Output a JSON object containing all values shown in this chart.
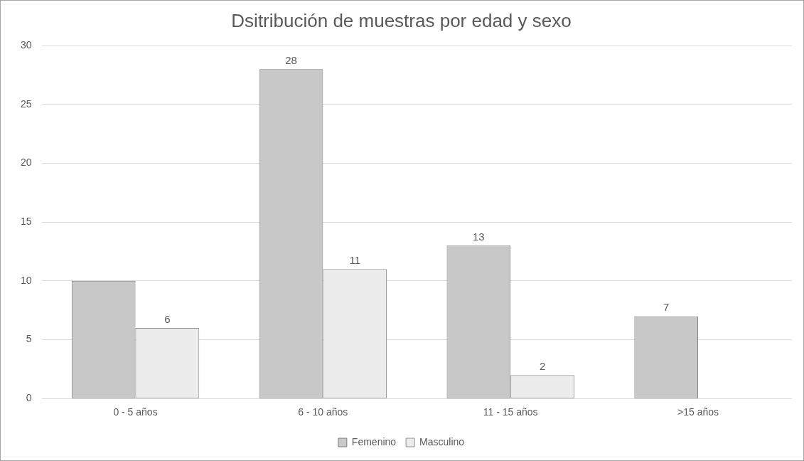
{
  "chart_data": {
    "type": "bar",
    "title": "Dsitribución de muestras por edad y sexo",
    "categories": [
      "0 - 5 años",
      "6 - 10 años",
      "11 - 15 años",
      ">15 años"
    ],
    "series": [
      {
        "name": "Femenino",
        "color": "#c8c8c8",
        "values": [
          10,
          28,
          13,
          7
        ],
        "value_labels": [
          null,
          "28",
          "13",
          "7"
        ]
      },
      {
        "name": "Masculino",
        "color": "#ececec",
        "values": [
          6,
          11,
          2,
          0
        ],
        "value_labels": [
          "6",
          "11",
          "2",
          null
        ]
      }
    ],
    "ylim": [
      0,
      30
    ],
    "yticks": [
      0,
      5,
      10,
      15,
      20,
      25,
      30
    ],
    "grid": "y",
    "legend": "bottom"
  }
}
